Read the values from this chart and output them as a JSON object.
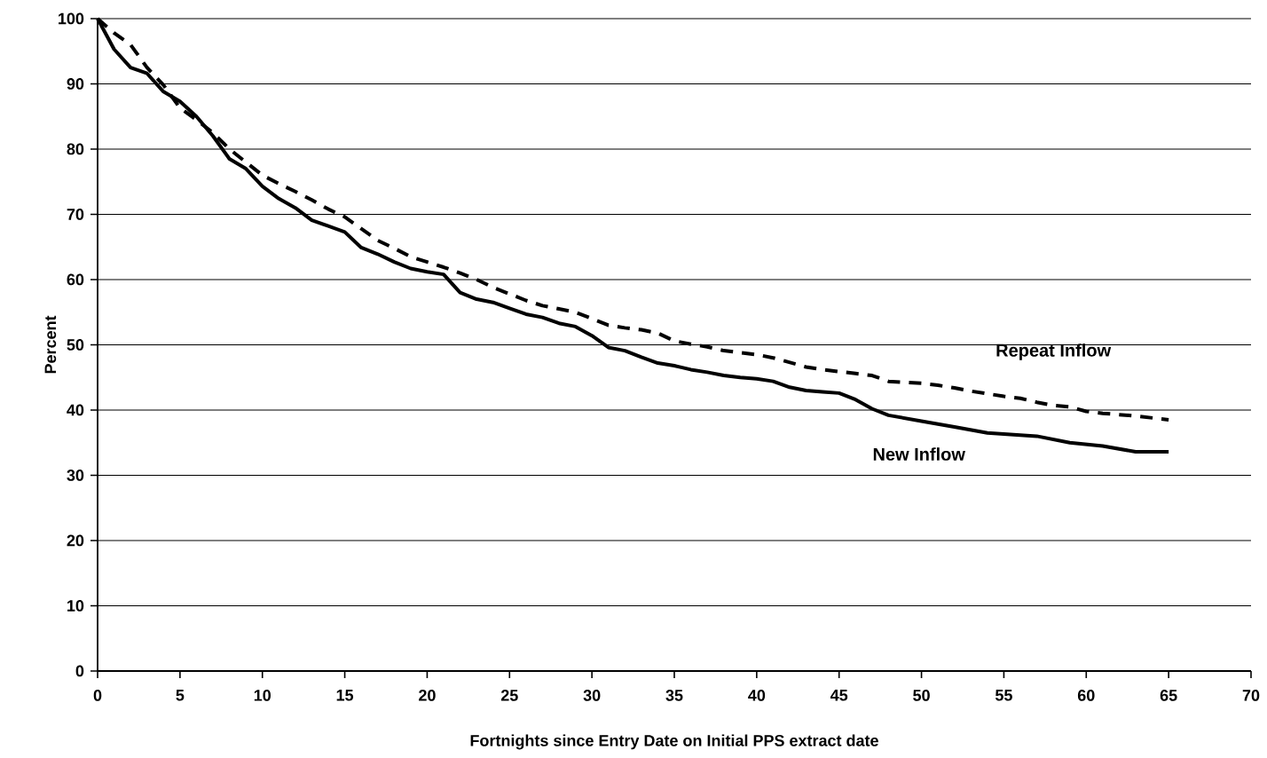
{
  "chart_data": {
    "type": "line",
    "xlabel": "Fortnights since Entry Date on Initial PPS extract date",
    "ylabel": "Percent",
    "xlim": [
      0,
      70
    ],
    "xticks": [
      0,
      5,
      10,
      15,
      20,
      25,
      30,
      35,
      40,
      45,
      50,
      55,
      60,
      65,
      70
    ],
    "ylim": [
      0,
      100
    ],
    "yticks": [
      0,
      10,
      20,
      30,
      40,
      50,
      60,
      70,
      80,
      90,
      100
    ],
    "grid": "y",
    "legend": false,
    "marker": "none",
    "series": [
      {
        "name": "Repeat Inflow",
        "color": "#000000",
        "line_style": "dashed",
        "x": [
          0,
          1,
          2,
          3,
          4,
          5,
          6,
          7,
          8,
          9,
          10,
          11,
          12,
          13,
          14,
          15,
          16,
          17,
          18,
          19,
          20,
          21,
          22,
          23,
          24,
          25,
          26,
          27,
          28,
          29,
          30,
          31,
          32,
          33,
          34,
          35,
          36,
          37,
          38,
          39,
          40,
          41,
          42,
          43,
          44,
          45,
          46,
          47,
          48,
          50,
          51,
          52,
          53,
          54,
          55,
          56,
          57,
          58,
          59,
          60,
          61,
          62,
          63,
          64,
          65
        ],
        "values": [
          100,
          97.8,
          96,
          92.5,
          89.8,
          86.3,
          84.5,
          82.5,
          80,
          78,
          76,
          74.7,
          73.5,
          72.2,
          70.8,
          69.6,
          67.8,
          66,
          64.8,
          63.5,
          62.7,
          61.9,
          61,
          60,
          58.8,
          57.8,
          56.8,
          56,
          55.5,
          55,
          54,
          53,
          52.6,
          52.3,
          51.8,
          50.6,
          50.1,
          49.7,
          49.1,
          48.8,
          48.5,
          48,
          47.3,
          46.6,
          46.2,
          45.9,
          45.6,
          45.3,
          44.4,
          44.1,
          43.8,
          43.4,
          42.9,
          42.5,
          42.1,
          41.8,
          41.2,
          40.7,
          40.5,
          39.8,
          39.5,
          39.3,
          39.1,
          38.8,
          38.5
        ]
      },
      {
        "name": "New Inflow",
        "color": "#000000",
        "line_style": "solid",
        "x": [
          0,
          1,
          2,
          3,
          4,
          5,
          6,
          7,
          8,
          9,
          10,
          11,
          12,
          13,
          14,
          15,
          16,
          17,
          18,
          19,
          20,
          21,
          22,
          23,
          24,
          25,
          26,
          27,
          28,
          29,
          30,
          31,
          32,
          33,
          34,
          35,
          36,
          37,
          38,
          39,
          40,
          41,
          42,
          43,
          44,
          45,
          46,
          47,
          48,
          50,
          52,
          54,
          57,
          59,
          61,
          63,
          65
        ],
        "values": [
          100,
          95.3,
          92.5,
          91.6,
          88.8,
          87.3,
          85,
          82,
          78.5,
          77,
          74.3,
          72.4,
          71,
          69.1,
          68.2,
          67.3,
          64.9,
          63.9,
          62.7,
          61.7,
          61.2,
          60.8,
          58,
          57,
          56.5,
          55.6,
          54.7,
          54.2,
          53.3,
          52.8,
          51.4,
          49.6,
          49.1,
          48.1,
          47.2,
          46.8,
          46.2,
          45.8,
          45.3,
          45,
          44.8,
          44.4,
          43.5,
          43,
          42.8,
          42.6,
          41.6,
          40.2,
          39.2,
          38.3,
          37.4,
          36.5,
          36,
          35,
          34.5,
          33.6,
          33.6
        ]
      }
    ]
  }
}
